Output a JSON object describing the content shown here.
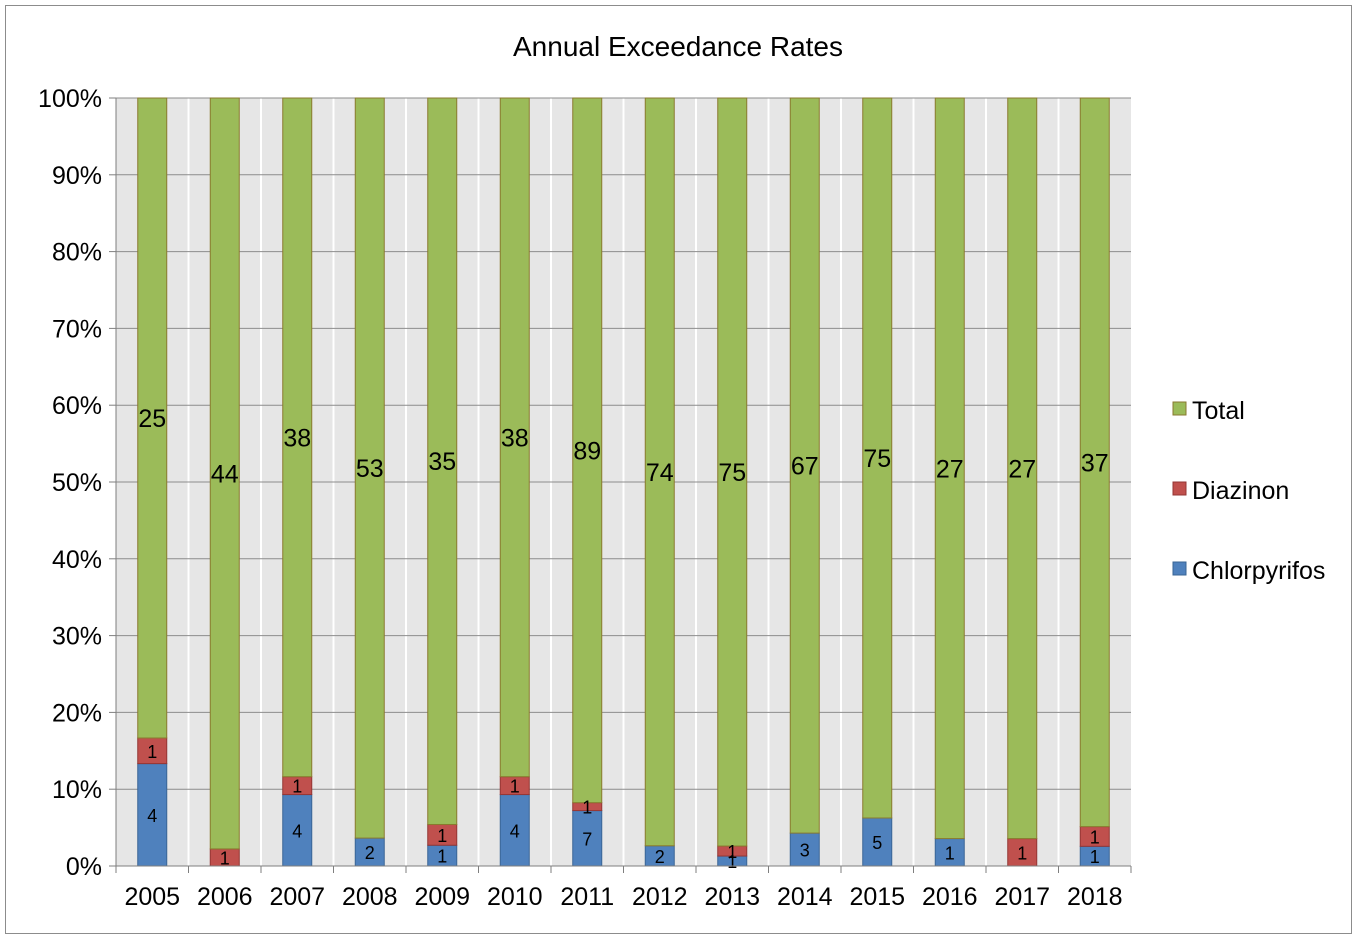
{
  "chart_data": {
    "type": "bar",
    "stacked": true,
    "normalized": true,
    "title": "Annual Exceedance Rates",
    "xlabel": "",
    "ylabel": "",
    "categories": [
      "2005",
      "2006",
      "2007",
      "2008",
      "2009",
      "2010",
      "2011",
      "2012",
      "2013",
      "2014",
      "2015",
      "2016",
      "2017",
      "2018"
    ],
    "y_ticks": [
      "0%",
      "10%",
      "20%",
      "30%",
      "40%",
      "50%",
      "60%",
      "70%",
      "80%",
      "90%",
      "100%"
    ],
    "ylim": [
      0,
      100
    ],
    "grid": true,
    "legend_position": "right",
    "series": [
      {
        "name": "Chlorpyrifos",
        "color": "#4f81bd",
        "values": [
          4,
          0,
          4,
          2,
          1,
          4,
          7,
          2,
          1,
          3,
          5,
          1,
          0,
          1
        ]
      },
      {
        "name": "Diazinon",
        "color": "#c0504d",
        "values": [
          1,
          1,
          1,
          0,
          1,
          1,
          1,
          0,
          1,
          0,
          0,
          0,
          1,
          1
        ]
      },
      {
        "name": "Total",
        "color": "#9bbb59",
        "values": [
          25,
          44,
          38,
          53,
          35,
          38,
          89,
          74,
          75,
          67,
          75,
          27,
          27,
          37
        ]
      }
    ],
    "legend_order": [
      "Total",
      "Diazinon",
      "Chlorpyrifos"
    ]
  }
}
